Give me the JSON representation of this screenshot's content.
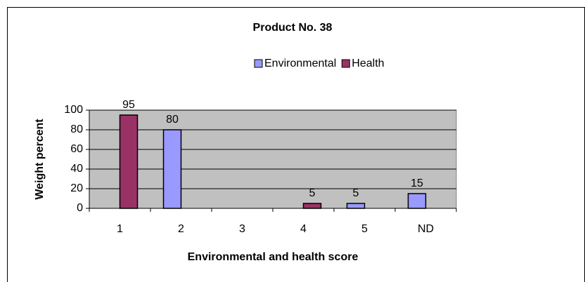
{
  "chart_data": {
    "type": "bar",
    "title": "Product No. 38",
    "x_label": "Environmental and health score",
    "y_label": "Weight percent",
    "categories": [
      "1",
      "2",
      "3",
      "4",
      "5",
      "ND"
    ],
    "series": [
      {
        "name": "Environmental",
        "color": "#9999ff",
        "values": [
          0,
          80,
          0,
          0,
          5,
          15
        ],
        "value_labels": [
          null,
          "80",
          null,
          null,
          "5",
          "15"
        ]
      },
      {
        "name": "Health",
        "color": "#993366",
        "values": [
          95,
          0,
          0,
          5,
          0,
          0
        ],
        "value_labels": [
          "95",
          null,
          null,
          "5",
          null,
          null
        ]
      }
    ],
    "ylim": [
      0,
      100
    ],
    "yticks": [
      0,
      20,
      40,
      60,
      80,
      100
    ],
    "grid": true,
    "legend": "top"
  }
}
